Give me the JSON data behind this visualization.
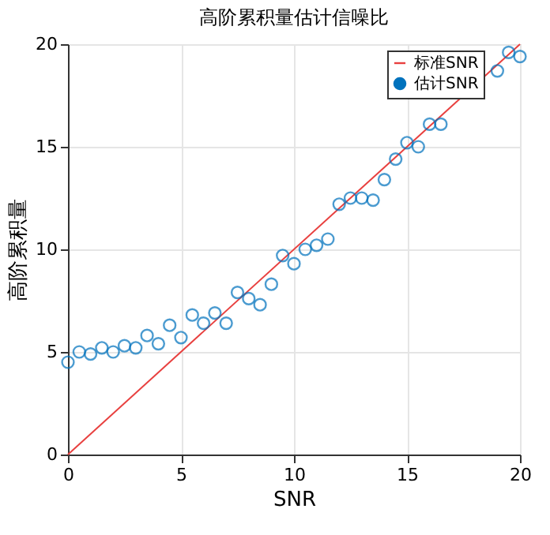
{
  "chart_data": {
    "type": "scatter",
    "title": "高阶累积量估计信噪比",
    "xlabel": "SNR",
    "ylabel": "高阶累积量",
    "xlim": [
      0,
      20
    ],
    "ylim": [
      0,
      20
    ],
    "xticks": [
      0,
      5,
      10,
      15,
      20
    ],
    "yticks": [
      0,
      5,
      10,
      15,
      20
    ],
    "grid": true,
    "legend": "top right",
    "series": [
      {
        "name": "标准SNR",
        "type": "line",
        "color": "#e8403f",
        "x": [
          0,
          20
        ],
        "values": [
          0,
          20
        ],
        "marker": "none",
        "line_style": "solid"
      },
      {
        "name": "估计SNR",
        "color": "#0072bd",
        "marker": "circle",
        "x": [
          0,
          0.5,
          1,
          1.5,
          2,
          2.5,
          3,
          3.5,
          4,
          4.5,
          5,
          5.5,
          6,
          6.5,
          7,
          7.5,
          8,
          8.5,
          9,
          9.5,
          10,
          10.5,
          11,
          11.5,
          12,
          12.5,
          13,
          13.5,
          14,
          14.5,
          15,
          15.5,
          16,
          16.5,
          17,
          17.5,
          18,
          18.5,
          19,
          19.5,
          20
        ],
        "values": [
          4.5,
          5.0,
          4.9,
          5.2,
          5.0,
          5.3,
          5.2,
          5.8,
          5.4,
          6.3,
          5.7,
          6.8,
          6.4,
          6.9,
          6.4,
          7.9,
          7.6,
          7.3,
          8.3,
          9.7,
          9.3,
          10.0,
          10.2,
          10.5,
          12.2,
          12.5,
          12.5,
          12.4,
          13.4,
          14.4,
          15.2,
          15.0,
          16.1,
          16.1,
          null,
          null,
          null,
          null,
          18.7,
          19.6,
          19.4
        ]
      }
    ]
  }
}
